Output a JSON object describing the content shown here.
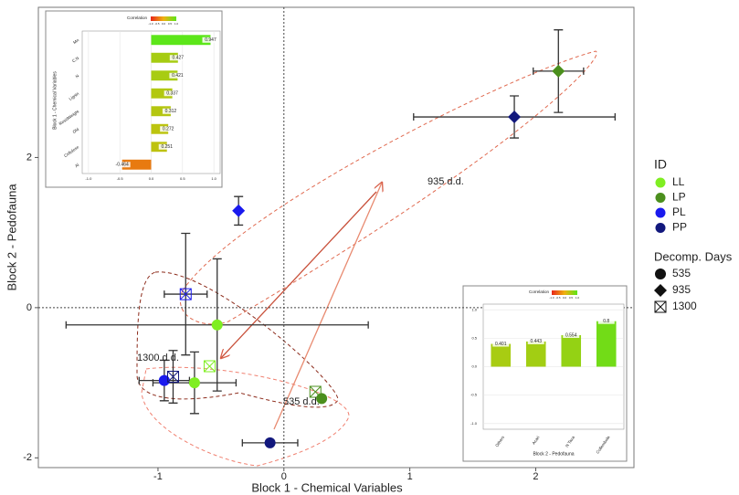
{
  "chart_data": [
    {
      "type": "scatter",
      "x_label": "Block 1 - Chemical Variables",
      "y_label": "Block 2 - Pedofauna",
      "xlim": [
        -1.95,
        2.78
      ],
      "ylim": [
        -2.13,
        4.0
      ],
      "xticks": [
        -1,
        0,
        1,
        2
      ],
      "yticks": [
        -2,
        0,
        2
      ],
      "zero_lines": true,
      "id_title": "ID",
      "groups": [
        {
          "name": "LL",
          "color": "#7fee22"
        },
        {
          "name": "LP",
          "color": "#4b8f1d"
        },
        {
          "name": "PL",
          "color": "#1a1aee"
        },
        {
          "name": "PP",
          "color": "#12187d"
        }
      ],
      "days_title": "Decomp. Days",
      "days": [
        {
          "name": "535",
          "shape": "circle"
        },
        {
          "name": "935",
          "shape": "diamond"
        },
        {
          "name": "1300",
          "shape": "square-x"
        }
      ],
      "points": [
        {
          "id": "LP",
          "days": "935",
          "x": 2.18,
          "y": 3.15,
          "xerr": 0.2,
          "yerr": 0.55
        },
        {
          "id": "PP",
          "days": "935",
          "x": 1.83,
          "y": 2.54,
          "xerr": 0.8,
          "yerr": 0.28
        },
        {
          "id": "PL",
          "days": "935",
          "x": -0.36,
          "y": 1.29,
          "xerr": null,
          "yerr": 0.19
        },
        {
          "id": "PL",
          "days": "1300",
          "x": -0.78,
          "y": 0.18,
          "xerr": 0.17,
          "yerr": 0.81
        },
        {
          "id": "LL",
          "days": "535",
          "x": -0.53,
          "y": -0.23,
          "xerr": 1.2,
          "yerr": 0.88
        },
        {
          "id": "LL",
          "days": "1300",
          "x": -0.59,
          "y": -0.78,
          "xerr": null,
          "yerr": null
        },
        {
          "id": "PL",
          "days": "535",
          "x": -0.95,
          "y": -0.97,
          "xerr": 0.2,
          "yerr": 0.27
        },
        {
          "id": "PP",
          "days": "1300",
          "x": -0.88,
          "y": -0.92,
          "xerr": null,
          "yerr": 0.35
        },
        {
          "id": "LL",
          "days": "535",
          "x": -0.71,
          "y": -1.0,
          "xerr": 0.33,
          "yerr": 0.41
        },
        {
          "id": "LP",
          "days": "1300",
          "x": 0.25,
          "y": -1.12,
          "xerr": null,
          "yerr": null
        },
        {
          "id": "LP",
          "days": "535",
          "x": 0.3,
          "y": -1.21,
          "xerr": null,
          "yerr": null
        },
        {
          "id": "PP",
          "days": "535",
          "x": -0.11,
          "y": -1.8,
          "xerr": 0.22,
          "yerr": null
        }
      ],
      "annotations": [
        "935 d.d.",
        "1300 d.d.",
        "535 d.d."
      ]
    },
    {
      "type": "bar",
      "orientation": "horizontal",
      "y_label": "Block 1 - Chemical Variables",
      "categories": [
        "Mn",
        "C.N",
        "N",
        "Lignin",
        "ResidWeight",
        "Old",
        "Cellulose",
        "Al"
      ],
      "values": [
        0.947,
        0.427,
        0.421,
        0.337,
        0.312,
        0.272,
        0.251,
        -0.464
      ],
      "colors": [
        "#5ce619",
        "#a6cc12",
        "#a8cc12",
        "#b2c810",
        "#b4c610",
        "#bcc40f",
        "#bec20f",
        "#e87a10"
      ],
      "xlim": [
        -1.1,
        1.1
      ],
      "xticks": [
        {
          "value": -1,
          "label": "-1.0"
        },
        {
          "value": -0.5,
          "label": "-0.5"
        },
        {
          "value": 0,
          "label": "0.0"
        },
        {
          "value": 0.5,
          "label": "0.5"
        },
        {
          "value": 1,
          "label": "1.0"
        }
      ],
      "grid": true,
      "colorbar": {
        "title": "Correlation",
        "colors": [
          "#e8261a",
          "#f0b010",
          "#5ce619"
        ],
        "ticks": [
          {
            "value": -1,
            "label": "-1.0"
          },
          {
            "value": -0.5,
            "label": "-0.5"
          },
          {
            "value": 0,
            "label": "0.0"
          },
          {
            "value": 0.5,
            "label": "0.5"
          },
          {
            "value": 1,
            "label": "1.0"
          }
        ]
      }
    },
    {
      "type": "bar",
      "orientation": "vertical",
      "x_label": "Block 2 - Pedofauna",
      "categories": [
        "Others",
        "Acari",
        "N Taxa",
        "Collembola"
      ],
      "values": [
        0.401,
        0.443,
        0.554,
        0.8
      ],
      "colors": [
        "#a8cc12",
        "#a2ce13",
        "#94d214",
        "#72dc17"
      ],
      "ylim": [
        -1.1,
        1.1
      ],
      "yticks": [
        {
          "value": -1,
          "label": "-1.0"
        },
        {
          "value": -0.5,
          "label": "-0.5"
        },
        {
          "value": 0,
          "label": "0.0"
        },
        {
          "value": 0.5,
          "label": "0.5"
        },
        {
          "value": 1,
          "label": "1.0"
        }
      ],
      "grid": true,
      "colorbar": {
        "title": "Correlation",
        "colors": [
          "#e8261a",
          "#f0b010",
          "#5ce619"
        ],
        "ticks": [
          {
            "value": -1,
            "label": "-1.0"
          },
          {
            "value": -0.5,
            "label": "-0.5"
          },
          {
            "value": 0,
            "label": "0.0"
          },
          {
            "value": 0.5,
            "label": "0.5"
          },
          {
            "value": 1,
            "label": "1.0"
          }
        ]
      }
    }
  ]
}
